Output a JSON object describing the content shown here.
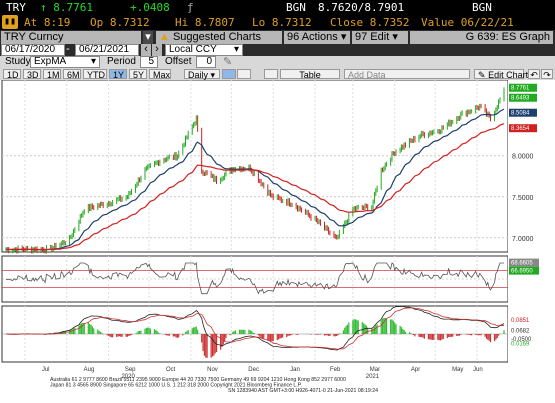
{
  "header": {
    "ticker": "TRY",
    "price": "↑ 8.7761",
    "change": "+.0408",
    "bid_label": "BGN",
    "bid_ask": "8.7620/8.7901",
    "source": "BGN",
    "line2": {
      "at": "At 8:19",
      "op": "Op 8.7312",
      "hi": "Hi 8.7807",
      "lo": "Lo 8.7312",
      "close": "Close 8.7352",
      "value": "Value 06/22/21"
    }
  },
  "toolbar": {
    "security": "TRY Curncy",
    "suggested": "Suggested Charts",
    "actions": "Actions",
    "edit": "Edit",
    "graph_label": "G 639: ES Graph",
    "date_from": "06/17/2020",
    "date_to": "06/21/2021",
    "currency": "Local CCY",
    "study_label": "Study",
    "study_value": "ExpMA",
    "period_label": "Period",
    "period_value": "5",
    "offset_label": "Offset",
    "offset_value": "0"
  },
  "ranges": [
    "1D",
    "3D",
    "1M",
    "6M",
    "YTD",
    "1Y",
    "5Y",
    "Max"
  ],
  "selected_range": "1Y",
  "frequency": "Daily",
  "table_label": "Table",
  "add_data": "Add Data",
  "edit_chart": "Edit Chart",
  "colors": {
    "accent": "#e0a020",
    "up": "#22aa22",
    "down": "#cc2222",
    "ema_fast": "#1f3f6e",
    "ema_slow": "#d02020"
  },
  "price_axis": {
    "labels": [
      "8.0000",
      "7.5000",
      "7.0000"
    ],
    "tags": [
      {
        "text": "8.7761",
        "color": "#22aa22"
      },
      {
        "text": "8.6493",
        "color": "#22aa22"
      },
      {
        "text": "8.5084",
        "color": "#1f3f6e"
      },
      {
        "text": "8.3654",
        "color": "#d02020"
      }
    ]
  },
  "rsi_tags": [
    {
      "text": "66.6950",
      "color": "#22aa22"
    },
    {
      "text": "68.6605",
      "color": "#888888"
    }
  ],
  "macd_tags": [
    {
      "text": "0.0851",
      "color": "#cc2222"
    },
    {
      "text": "0.0682",
      "color": "#333333"
    },
    {
      "text": "0.0169",
      "color": "#22aa22"
    },
    {
      "text": "-0.0500",
      "color": "#333333"
    }
  ],
  "x_axis": {
    "months": [
      "Jul",
      "Aug",
      "Sep",
      "Oct",
      "Nov",
      "Dec",
      "Jan",
      "Feb",
      "Mar",
      "Apr",
      "May",
      "Jun"
    ],
    "years": [
      "2020",
      "2021"
    ]
  },
  "footer": {
    "line1": "Australia 61 2 9777 8600  Brazil 5511 2395 9000  Europe 44 20 7330 7500  Germany 49 69 9204 1210  Hong Kong 852 2977 6000",
    "line2": "Japan 81 3 4565 8900        Singapore 65 6212 1000          U.S. 1 212 318 2000        Copyright 2021 Bloomberg Finance L.P.",
    "line3": "SN 1283940 AST  GMT+3:00 H926-4071-0 21-Jun-2021 08:19:24"
  },
  "chart_data": {
    "type": "line",
    "title": "",
    "x_range": [
      "2020-06-17",
      "2021-06-21"
    ],
    "ylim": [
      6.9,
      8.85
    ],
    "price_points": [
      {
        "date": "2020-06-17",
        "close": 6.86
      },
      {
        "date": "2020-07-01",
        "close": 6.86
      },
      {
        "date": "2020-07-20",
        "close": 6.86
      },
      {
        "date": "2020-08-03",
        "close": 6.98
      },
      {
        "date": "2020-08-14",
        "close": 7.35
      },
      {
        "date": "2020-08-31",
        "close": 7.42
      },
      {
        "date": "2020-09-15",
        "close": 7.5
      },
      {
        "date": "2020-09-28",
        "close": 7.82
      },
      {
        "date": "2020-10-10",
        "close": 7.95
      },
      {
        "date": "2020-10-22",
        "close": 8.0
      },
      {
        "date": "2020-11-05",
        "close": 8.45
      },
      {
        "date": "2020-11-09",
        "close": 7.82
      },
      {
        "date": "2020-11-20",
        "close": 7.7
      },
      {
        "date": "2020-12-03",
        "close": 7.85
      },
      {
        "date": "2020-12-15",
        "close": 7.85
      },
      {
        "date": "2020-12-31",
        "close": 7.5
      },
      {
        "date": "2021-01-15",
        "close": 7.42
      },
      {
        "date": "2021-02-01",
        "close": 7.22
      },
      {
        "date": "2021-02-17",
        "close": 6.98
      },
      {
        "date": "2021-03-01",
        "close": 7.35
      },
      {
        "date": "2021-03-15",
        "close": 7.38
      },
      {
        "date": "2021-03-22",
        "close": 7.82
      },
      {
        "date": "2021-04-01",
        "close": 8.05
      },
      {
        "date": "2021-04-20",
        "close": 8.25
      },
      {
        "date": "2021-05-05",
        "close": 8.32
      },
      {
        "date": "2021-05-20",
        "close": 8.5
      },
      {
        "date": "2021-06-03",
        "close": 8.6
      },
      {
        "date": "2021-06-11",
        "close": 8.45
      },
      {
        "date": "2021-06-21",
        "close": 8.78
      }
    ],
    "series": [
      {
        "name": "EMA fast",
        "color": "#1f3f6e"
      },
      {
        "name": "EMA slow",
        "color": "#d02020"
      }
    ],
    "rsi_levels": [
      70,
      50,
      30
    ],
    "grid": true
  }
}
